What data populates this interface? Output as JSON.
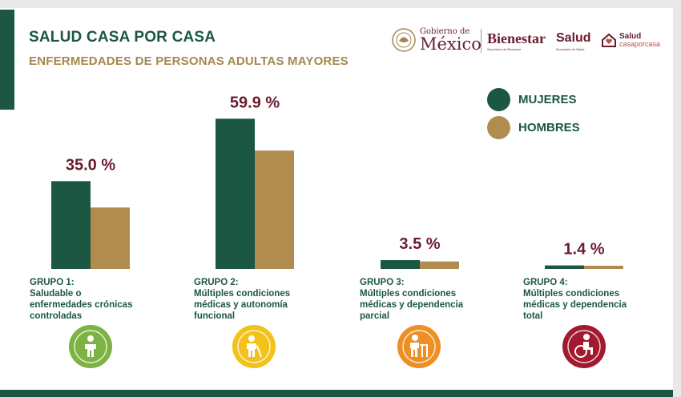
{
  "title": "SALUD CASA POR CASA",
  "subtitle": "ENFERMEDADES DE PERSONAS ADULTAS MAYORES",
  "logos": {
    "gobierno_small": "Gobierno de",
    "gobierno_big": "México",
    "bienestar": "Bienestar",
    "bienestar_sub": "Secretaría de Bienestar",
    "salud": "Salud",
    "salud_sub": "Secretaría de Salud",
    "casa_a": "Salud",
    "casa_b": "casaporcasa"
  },
  "colors": {
    "mujeres": "#1b5742",
    "hombres": "#b08d4e",
    "title": "#1b5742",
    "subtitle": "#a4874d",
    "value_label": "#6b1c2e"
  },
  "legend": [
    {
      "name": "MUJERES",
      "color": "#1b5742"
    },
    {
      "name": "HOMBRES",
      "color": "#b08d4e"
    }
  ],
  "groups": [
    {
      "heading": "GRUPO 1:",
      "lines": [
        "Saludable o",
        "enfermedades crónicas",
        "controladas"
      ],
      "icon": "person-standing-icon",
      "icon_color": "#7cb342"
    },
    {
      "heading": "GRUPO 2:",
      "lines": [
        "Múltiples condiciones",
        "médicas y autonomía",
        "funcional"
      ],
      "icon": "person-with-cane-icon",
      "icon_color": "#f2c21a"
    },
    {
      "heading": "GRUPO 3:",
      "lines": [
        "Múltiples condiciones",
        "médicas y dependencia",
        "parcial"
      ],
      "icon": "person-with-walker-icon",
      "icon_color": "#ee8f24"
    },
    {
      "heading": "GRUPO 4:",
      "lines": [
        "Múltiples condiciones",
        "médicas y dependencia",
        "total"
      ],
      "icon": "person-wheelchair-icon",
      "icon_color": "#a3192f"
    }
  ],
  "chart_data": {
    "type": "bar",
    "categories": [
      "GRUPO 1",
      "GRUPO 2",
      "GRUPO 3",
      "GRUPO 4"
    ],
    "group_value_labels": [
      "35.0 %",
      "59.9 %",
      "3.5 %",
      "1.4 %"
    ],
    "series": [
      {
        "name": "MUJERES",
        "values": [
          35.0,
          59.9,
          3.5,
          1.4
        ]
      },
      {
        "name": "HOMBRES",
        "values": [
          24.5,
          47.2,
          3.0,
          1.0
        ]
      }
    ],
    "ylim": [
      0,
      60
    ],
    "grid": false,
    "legend_position": "top-right"
  }
}
